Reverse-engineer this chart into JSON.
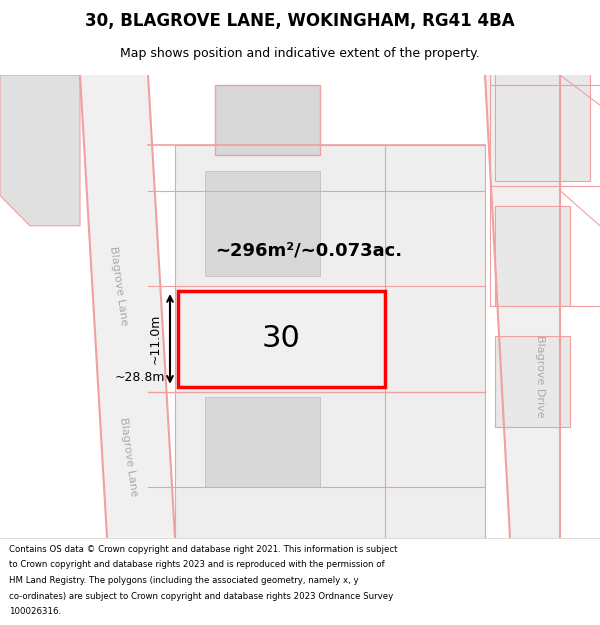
{
  "title": "30, BLAGROVE LANE, WOKINGHAM, RG41 4BA",
  "subtitle": "Map shows position and indicative extent of the property.",
  "footer_lines": [
    "Contains OS data © Crown copyright and database right 2021. This information is subject",
    "to Crown copyright and database rights 2023 and is reproduced with the permission of",
    "HM Land Registry. The polygons (including the associated geometry, namely x, y",
    "co-ordinates) are subject to Crown copyright and database rights 2023 Ordnance Survey",
    "100026316."
  ],
  "area_text": "~296m²/~0.073ac.",
  "width_text": "~28.8m",
  "height_text": "~11.0m",
  "house_number": "30",
  "street1": "Blagrove Lane",
  "street2": "Blagrove Drive",
  "road_line_color": "#f0a0a0",
  "bld_fill": "#d8d8d8",
  "bld_edge": "#bbbbbb",
  "plot_color": "#ff0000",
  "map_bg": "#f5f5f5",
  "road_bg": "#f0f0f0",
  "block_bg": "#eeeeee",
  "right_bld_fill": "#e8e8e8"
}
